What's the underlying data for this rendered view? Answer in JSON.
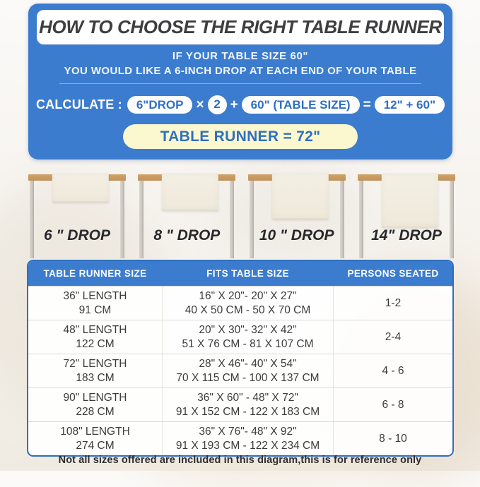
{
  "header": {
    "title": "HOW TO CHOOSE THE RIGHT TABLE RUNNER",
    "intro_line1": "IF YOUR TABLE SIZE 60\"",
    "intro_line2": "YOU WOULD LIKE A 6-INCH DROP AT EACH END OF YOUR TABLE",
    "calc_label": "CALCULATE :",
    "calc_drop": "6\"DROP",
    "calc_times": "×",
    "calc_multiplier": "2",
    "calc_plus": "+",
    "calc_table_size": "60\" (TABLE SIZE)",
    "calc_equals": "=",
    "calc_sum": "12\" + 60\"",
    "calc_result": "TABLE RUNNER = 72\""
  },
  "drops": [
    {
      "label": "6 \" DROP"
    },
    {
      "label": "8 \" DROP"
    },
    {
      "label": "10 \" DROP"
    },
    {
      "label": "14\" DROP"
    }
  ],
  "size_table": {
    "columns": [
      "TABLE RUNNER SIZE",
      "FITS TABLE SIZE",
      "PERSONS SEATED"
    ],
    "rows": [
      {
        "runner_in": "36\" LENGTH",
        "runner_cm": "91 CM",
        "fits_in": "16\" X 20\"- 20\" X 27\"",
        "fits_cm": "40 X 50 CM - 50 X 70 CM",
        "persons": "1-2"
      },
      {
        "runner_in": "48\" LENGTH",
        "runner_cm": "122 CM",
        "fits_in": "20\" X 30\"- 32\" X 42\"",
        "fits_cm": "51 X 76 CM - 81 X 107 CM",
        "persons": "2-4"
      },
      {
        "runner_in": "72\" LENGTH",
        "runner_cm": "183 CM",
        "fits_in": "28\" X 46\"- 40\" X 54\"",
        "fits_cm": "70 X 115 CM - 100 X 137 CM",
        "persons": "4 - 6"
      },
      {
        "runner_in": "90\" LENGTH",
        "runner_cm": "228 CM",
        "fits_in": "36\" X 60\" - 48\" X 72\"",
        "fits_cm": "91 X 152 CM - 122 X 183 CM",
        "persons": "6 - 8"
      },
      {
        "runner_in": "108\" LENGTH",
        "runner_cm": "274 CM",
        "fits_in": "36\" X 76\"- 48\" X 92\"",
        "fits_cm": "91 X 193 CM - 122 X 234 CM",
        "persons": "8 - 10"
      }
    ]
  },
  "footer_note": "Not all sizes offered are included in this diagram,this is for reference only",
  "colors": {
    "panel_blue": "#3c7cce",
    "pill_text_blue": "#2f6fc2",
    "result_yellow": "#fbf8cf",
    "tabletop_tan": "#c89b63",
    "leg_gray": "#c8c4bd",
    "runner_cream": "#f1ecdf",
    "title_dark": "#3e3e41",
    "body_text": "#3b3b3b"
  }
}
